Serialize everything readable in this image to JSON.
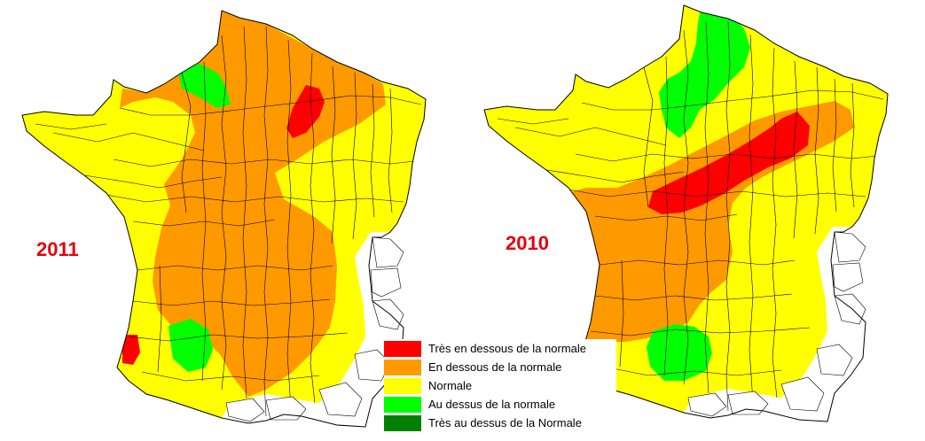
{
  "maps": [
    {
      "id": "map-2011",
      "year_label": "2011",
      "zones": [
        {
          "level": "below",
          "description": "centre and northeast"
        },
        {
          "level": "well_below",
          "description": "Champagne"
        },
        {
          "level": "well_below",
          "description": "Landes coast"
        },
        {
          "level": "above",
          "description": "Lower Normandy"
        },
        {
          "level": "above",
          "description": "Gers"
        }
      ]
    },
    {
      "id": "map-2010",
      "year_label": "2010",
      "zones": [
        {
          "level": "below",
          "description": "diagonal belt from Charente to Lorraine"
        },
        {
          "level": "well_below",
          "description": "Centre to Champagne"
        },
        {
          "level": "above",
          "description": "Nord and Picardy"
        },
        {
          "level": "above",
          "description": "Midi-Pyrénées"
        }
      ]
    }
  ],
  "legend": {
    "items": [
      {
        "key": "well_below",
        "label": "Très en dessous de la normale",
        "color": "#ff0000"
      },
      {
        "key": "below",
        "label": "En dessous de la normale",
        "color": "#ff9900"
      },
      {
        "key": "normal",
        "label": "Normale",
        "color": "#ffff00"
      },
      {
        "key": "above",
        "label": "Au dessus de la normale",
        "color": "#00ff00"
      },
      {
        "key": "well_above",
        "label": "Très au dessus de la Normale",
        "color": "#008000"
      }
    ]
  },
  "colors": {
    "no_data": "#ffffff",
    "border": "#000000",
    "year_label": "#e3000f"
  }
}
